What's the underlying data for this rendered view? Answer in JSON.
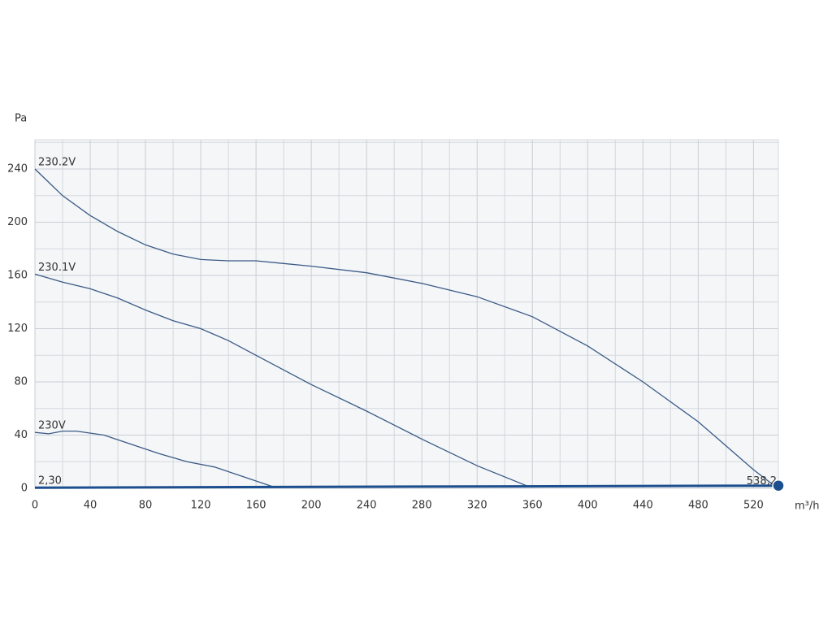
{
  "chart_data": {
    "type": "line",
    "y_label": "Pa",
    "x_label": "m³/h",
    "xlim": [
      0,
      538
    ],
    "ylim": [
      0,
      262
    ],
    "xticks": [
      0,
      40,
      80,
      120,
      160,
      200,
      240,
      280,
      320,
      360,
      400,
      440,
      480,
      520
    ],
    "yticks": [
      0,
      40,
      80,
      120,
      160,
      200,
      240
    ],
    "grid": true,
    "series": [
      {
        "name": "230.2V",
        "color": "#3b5a86",
        "x": [
          0,
          10,
          20,
          40,
          60,
          80,
          100,
          120,
          140,
          160,
          180,
          200,
          240,
          280,
          320,
          360,
          400,
          440,
          480,
          520,
          535
        ],
        "values": [
          240,
          230,
          220,
          205,
          193,
          183,
          176,
          172,
          171,
          171,
          169,
          167,
          162,
          154,
          144,
          129,
          107,
          80,
          50,
          14,
          2
        ]
      },
      {
        "name": "230.1V",
        "color": "#3b5a86",
        "x": [
          0,
          20,
          40,
          60,
          80,
          100,
          120,
          140,
          160,
          180,
          200,
          240,
          280,
          320,
          358
        ],
        "values": [
          161,
          155,
          150,
          143,
          134,
          126,
          120,
          111,
          100,
          89,
          78,
          58,
          37,
          17,
          1
        ]
      },
      {
        "name": "230V",
        "color": "#3b5a86",
        "x": [
          0,
          10,
          20,
          30,
          50,
          70,
          90,
          110,
          130,
          150,
          170,
          173
        ],
        "values": [
          42,
          41,
          43,
          43,
          40,
          33,
          26,
          20,
          16,
          9,
          2,
          1
        ]
      },
      {
        "name": "2,30",
        "color": "#1d4f8f",
        "x": [
          0,
          538
        ],
        "values": [
          0.5,
          2
        ]
      }
    ],
    "operating_point": {
      "x": 538,
      "y": 2,
      "label": "538,2",
      "color": "#1d4f8f"
    }
  }
}
